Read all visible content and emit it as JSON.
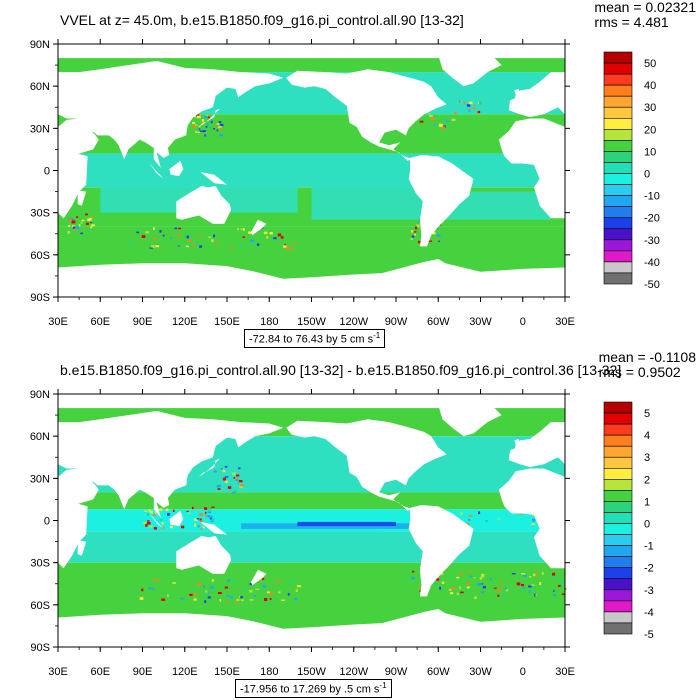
{
  "panels": [
    {
      "title": "VVEL at z=  45.0m, b.e15.B1850.f09_g16.pi_control.all.90 [13-32]",
      "mean_label": "mean = 0.02321",
      "rms_label": "rms = 4.481",
      "range_label": "-72.84 to 76.43 by 5 cm s",
      "range_unit_exp": "-1",
      "lat_ticks": [
        "90N",
        "60N",
        "30N",
        "0",
        "30S",
        "60S",
        "90S"
      ],
      "lon_ticks": [
        "30E",
        "60E",
        "90E",
        "120E",
        "150E",
        "180",
        "150W",
        "120W",
        "90W",
        "60W",
        "30W",
        "0",
        "30E"
      ],
      "colorbar_labels": [
        "50",
        "40",
        "30",
        "20",
        "10",
        "0",
        "-10",
        "-20",
        "-30",
        "-40",
        "-50"
      ]
    },
    {
      "title": "b.e15.B1850.f09_g16.pi_control.all.90 [13-32] - b.e15.B1850.f09_g16.pi_control.36 [13-32]",
      "mean_label": "mean = -0.1108",
      "rms_label": "rms = 0.9502",
      "range_label": "-17.956 to 17.269 by .5 cm s",
      "range_unit_exp": "-1",
      "lat_ticks": [
        "90N",
        "60N",
        "30N",
        "0",
        "30S",
        "60S",
        "90S"
      ],
      "lon_ticks": [
        "30E",
        "60E",
        "90E",
        "120E",
        "150E",
        "180",
        "150W",
        "120W",
        "90W",
        "60W",
        "30W",
        "0",
        "30E"
      ],
      "colorbar_labels": [
        "5",
        "4",
        "3",
        "2",
        "1",
        "0",
        "-1",
        "-2",
        "-3",
        "-4",
        "-5"
      ]
    }
  ],
  "colors": {
    "colorbar": [
      "#b30000",
      "#e00000",
      "#ff3b1f",
      "#ff7f1f",
      "#ffa632",
      "#ffc840",
      "#ffee40",
      "#b7e43a",
      "#46d23f",
      "#2cd37a",
      "#1fe0b7",
      "#1cf0e0",
      "#2acdf0",
      "#1fa8ef",
      "#1e7ef0",
      "#1d40ea",
      "#4a12c8",
      "#9b18d8",
      "#e018c8",
      "#c8c8c8",
      "#707070"
    ],
    "ocean_base": "#2fe0c0",
    "ocean_green": "#46d23f",
    "ocean_cyan": "#1cf0e0",
    "ocean_blue": "#1fa8ef",
    "land": "#ffffff"
  }
}
